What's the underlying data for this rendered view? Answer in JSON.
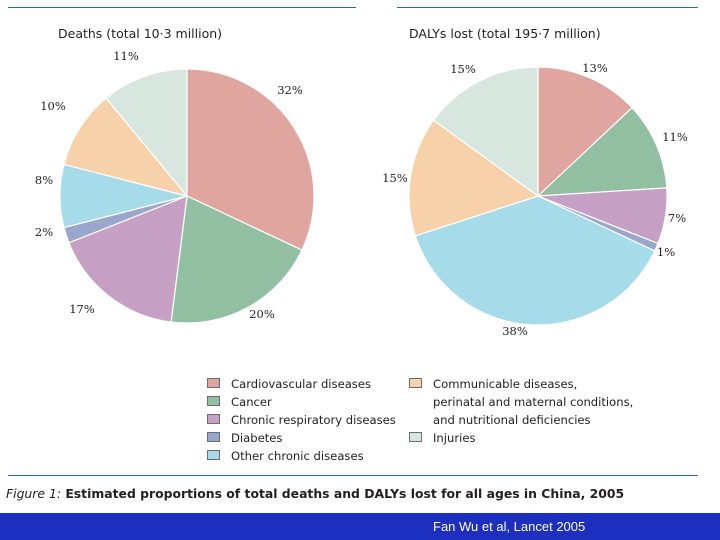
{
  "colors": {
    "cardiovascular": "#e0a59f",
    "cancer": "#92bea2",
    "chronic_respiratory": "#c5a0c4",
    "diabetes": "#9aa7cd",
    "other_chronic": "#a6dcea",
    "communicable": "#f7d1aa",
    "injuries": "#d7e6df",
    "rule": "#1a7a7a",
    "footer_bg": "#1d2fbf"
  },
  "chart_data": [
    {
      "type": "pie",
      "title": "Deaths (total 10·3 million)",
      "labels": [
        "Cardiovascular diseases",
        "Cancer",
        "Chronic respiratory diseases",
        "Diabetes",
        "Other chronic diseases",
        "Communicable diseases, perinatal and maternal conditions, and nutritional deficiencies",
        "Injuries"
      ],
      "values": [
        32,
        20,
        17,
        2,
        8,
        10,
        11
      ],
      "value_labels": [
        "32%",
        "20%",
        "17%",
        "2%",
        "8%",
        "10%",
        "11%"
      ]
    },
    {
      "type": "pie",
      "title": "DALYs lost (total 195·7 million)",
      "labels": [
        "Cardiovascular diseases",
        "Cancer",
        "Chronic respiratory diseases",
        "Diabetes",
        "Other chronic diseases",
        "Communicable diseases, perinatal and maternal conditions, and nutritional deficiencies",
        "Injuries"
      ],
      "values": [
        13,
        11,
        7,
        1,
        38,
        15,
        15
      ],
      "value_labels": [
        "13%",
        "11%",
        "7%",
        "1%",
        "38%",
        "15%",
        "15%"
      ]
    }
  ],
  "legend": {
    "left": [
      {
        "key": "cardiovascular",
        "label": "Cardiovascular diseases"
      },
      {
        "key": "cancer",
        "label": "Cancer"
      },
      {
        "key": "chronic_respiratory",
        "label": "Chronic respiratory diseases"
      },
      {
        "key": "diabetes",
        "label": "Diabetes"
      },
      {
        "key": "other_chronic",
        "label": "Other chronic diseases"
      }
    ],
    "right": [
      {
        "key": "communicable",
        "lines": [
          "Communicable diseases,",
          "perinatal and maternal conditions,",
          "and nutritional deficiencies"
        ]
      },
      {
        "key": "injuries",
        "label": "Injuries"
      }
    ]
  },
  "caption": {
    "prefix": "Figure 1:",
    "text": " Estimated proportions of total deaths and DALYs lost for all ages in China, 2005"
  },
  "footer": {
    "text": "Fan Wu et al, Lancet 2005"
  }
}
